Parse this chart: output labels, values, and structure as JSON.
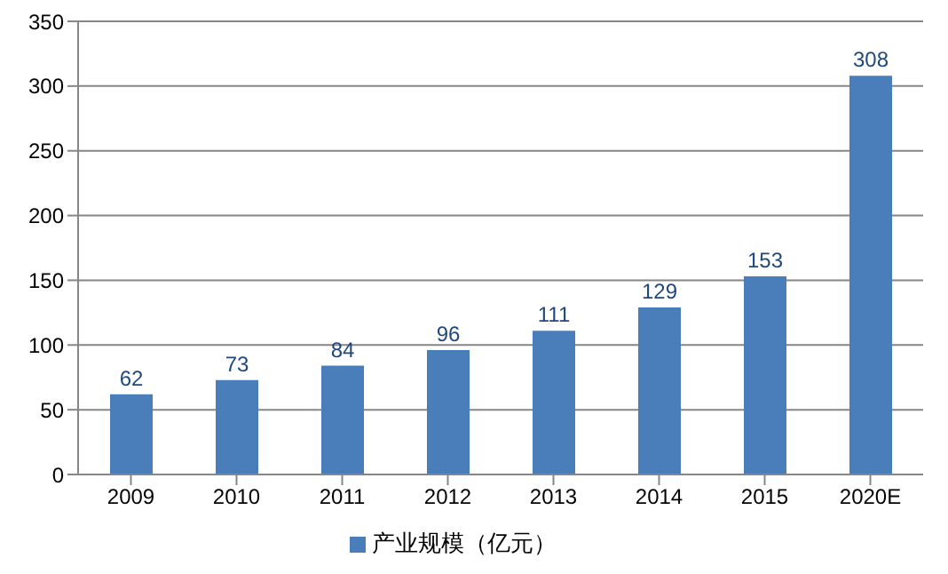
{
  "chart_data": {
    "type": "bar",
    "categories": [
      "2009",
      "2010",
      "2011",
      "2012",
      "2013",
      "2014",
      "2015",
      "2020E"
    ],
    "series": [
      {
        "name": "产业规模（亿元）",
        "color": "#4a7ebb",
        "values": [
          62,
          73,
          84,
          96,
          111,
          129,
          153,
          308
        ]
      }
    ],
    "ylim": [
      0,
      350
    ],
    "yticks": [
      0,
      50,
      100,
      150,
      200,
      250,
      300,
      350
    ],
    "grid": "y",
    "legend": "bottom",
    "data_labels": true
  }
}
